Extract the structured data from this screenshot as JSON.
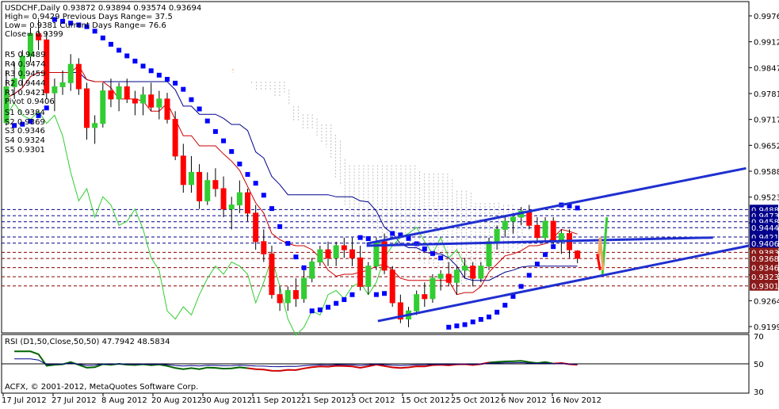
{
  "header": {
    "title": "USDCHF,Daily  0.93872 0.93894 0.93574 0.93694",
    "lines": [
      "High= 0.9429    Previous Days Range= 37.5",
      "Low= 0.9381    Current Days Range= 76.6",
      "Close= 0.9399"
    ]
  },
  "pivot_levels": [
    {
      "label": "R5 0.9489",
      "value": 0.9489
    },
    {
      "label": "R4 0.9474",
      "value": 0.9474
    },
    {
      "label": "R3 0.9459",
      "value": 0.9459
    },
    {
      "label": "R2 0.9444",
      "value": 0.9444
    },
    {
      "label": "R1 0.9421",
      "value": 0.9421
    },
    {
      "label": "Pivot 0.9406",
      "value": 0.9406
    },
    {
      "label": "S1 0.9384",
      "value": 0.9384
    },
    {
      "label": "S2 0.9369",
      "value": 0.9369
    },
    {
      "label": "S3 0.9346",
      "value": 0.9346
    },
    {
      "label": "S4 0.9324",
      "value": 0.9324
    },
    {
      "label": "S5 0.9301",
      "value": 0.9301
    }
  ],
  "copyright": "ACFX, © 2001-2012, MetaQuotes Software Corp.",
  "rsi": {
    "label": "RSI (D1,50,Close,50,50) 47.7942 48.5834",
    "y_ticks": [
      "70",
      "50",
      "30"
    ],
    "ylim": [
      30,
      70
    ]
  },
  "colors": {
    "bull": "#32cd32",
    "bear": "#ff0000",
    "trend": "#1f2fd0",
    "kijun": "#00008b",
    "tenkan": "#cc0000",
    "chikou": "#32cd32",
    "cloud_a": "#f4a460",
    "cloud_b": "#c0c0c0",
    "psar": "#0000ff",
    "arrow_green": "#32cd32",
    "arrow_orange": "#f4a460",
    "arrow_red": "#ff0000"
  },
  "chart_data": {
    "type": "candlestick",
    "symbol": "USDCHF",
    "timeframe": "Daily",
    "x_tick_labels": [
      "17 Jul 2012",
      "27 Jul 2012",
      "8 Aug 2012",
      "20 Aug 2012",
      "30 Aug 2012",
      "11 Sep 2012",
      "21 Sep 2012",
      "3 Oct 2012",
      "15 Oct 2012",
      "25 Oct 2012",
      "6 Nov 2012",
      "16 Nov 2012"
    ],
    "y_tick_labels": [
      "0.99765",
      "0.99120",
      "0.98475",
      "0.97815",
      "0.97170",
      "0.96525",
      "0.95880",
      "0.95235",
      "0.94590",
      "0.93940",
      "0.93295",
      "0.92640",
      "0.91995"
    ],
    "ylim": [
      0.9186,
      0.9999
    ],
    "right_axis_tags": [
      {
        "text": "0.94888",
        "value": 0.94888
      },
      {
        "text": "0.94735",
        "value": 0.94735
      },
      {
        "text": "0.94588",
        "value": 0.94588
      },
      {
        "text": "0.94443",
        "value": 0.94443
      },
      {
        "text": "0.94213",
        "value": 0.94213
      },
      {
        "text": "0.94062",
        "value": 0.94062
      },
      {
        "text": "0.93836",
        "value": 0.93836
      },
      {
        "text": "0.93687",
        "value": 0.93687
      },
      {
        "text": "0.93463",
        "value": 0.93463
      },
      {
        "text": "0.93238",
        "value": 0.93238
      },
      {
        "text": "0.93013",
        "value": 0.93013
      }
    ],
    "candles": [
      {
        "o": 0.9702,
        "h": 0.983,
        "l": 0.9695,
        "c": 0.979
      },
      {
        "o": 0.979,
        "h": 0.985,
        "l": 0.976,
        "c": 0.981
      },
      {
        "o": 0.981,
        "h": 0.988,
        "l": 0.979,
        "c": 0.9865
      },
      {
        "o": 0.9865,
        "h": 0.9935,
        "l": 0.985,
        "c": 0.992
      },
      {
        "o": 0.992,
        "h": 0.9955,
        "l": 0.988,
        "c": 0.9905
      },
      {
        "o": 0.9905,
        "h": 0.9925,
        "l": 0.976,
        "c": 0.9775
      },
      {
        "o": 0.9775,
        "h": 0.981,
        "l": 0.973,
        "c": 0.979
      },
      {
        "o": 0.979,
        "h": 0.983,
        "l": 0.977,
        "c": 0.98
      },
      {
        "o": 0.98,
        "h": 0.987,
        "l": 0.978,
        "c": 0.9845
      },
      {
        "o": 0.9845,
        "h": 0.986,
        "l": 0.977,
        "c": 0.9785
      },
      {
        "o": 0.9785,
        "h": 0.98,
        "l": 0.966,
        "c": 0.969
      },
      {
        "o": 0.969,
        "h": 0.972,
        "l": 0.965,
        "c": 0.97
      },
      {
        "o": 0.97,
        "h": 0.98,
        "l": 0.969,
        "c": 0.978
      },
      {
        "o": 0.978,
        "h": 0.981,
        "l": 0.974,
        "c": 0.976
      },
      {
        "o": 0.976,
        "h": 0.98,
        "l": 0.973,
        "c": 0.979
      },
      {
        "o": 0.979,
        "h": 0.981,
        "l": 0.975,
        "c": 0.976
      },
      {
        "o": 0.976,
        "h": 0.978,
        "l": 0.972,
        "c": 0.975
      },
      {
        "o": 0.975,
        "h": 0.979,
        "l": 0.972,
        "c": 0.977
      },
      {
        "o": 0.977,
        "h": 0.98,
        "l": 0.973,
        "c": 0.974
      },
      {
        "o": 0.974,
        "h": 0.978,
        "l": 0.971,
        "c": 0.976
      },
      {
        "o": 0.976,
        "h": 0.9775,
        "l": 0.97,
        "c": 0.971
      },
      {
        "o": 0.971,
        "h": 0.973,
        "l": 0.961,
        "c": 0.962
      },
      {
        "o": 0.962,
        "h": 0.965,
        "l": 0.953,
        "c": 0.955
      },
      {
        "o": 0.955,
        "h": 0.962,
        "l": 0.953,
        "c": 0.958
      },
      {
        "o": 0.958,
        "h": 0.96,
        "l": 0.949,
        "c": 0.951
      },
      {
        "o": 0.951,
        "h": 0.958,
        "l": 0.95,
        "c": 0.956
      },
      {
        "o": 0.956,
        "h": 0.959,
        "l": 0.952,
        "c": 0.954
      },
      {
        "o": 0.954,
        "h": 0.957,
        "l": 0.947,
        "c": 0.949
      },
      {
        "o": 0.949,
        "h": 0.952,
        "l": 0.944,
        "c": 0.95
      },
      {
        "o": 0.95,
        "h": 0.956,
        "l": 0.948,
        "c": 0.953
      },
      {
        "o": 0.953,
        "h": 0.954,
        "l": 0.946,
        "c": 0.948
      },
      {
        "o": 0.948,
        "h": 0.95,
        "l": 0.939,
        "c": 0.941
      },
      {
        "o": 0.941,
        "h": 0.944,
        "l": 0.936,
        "c": 0.938
      },
      {
        "o": 0.938,
        "h": 0.94,
        "l": 0.927,
        "c": 0.928
      },
      {
        "o": 0.928,
        "h": 0.93,
        "l": 0.924,
        "c": 0.926
      },
      {
        "o": 0.926,
        "h": 0.93,
        "l": 0.924,
        "c": 0.929
      },
      {
        "o": 0.929,
        "h": 0.932,
        "l": 0.925,
        "c": 0.927
      },
      {
        "o": 0.927,
        "h": 0.934,
        "l": 0.926,
        "c": 0.932
      },
      {
        "o": 0.932,
        "h": 0.937,
        "l": 0.931,
        "c": 0.936
      },
      {
        "o": 0.936,
        "h": 0.94,
        "l": 0.935,
        "c": 0.939
      },
      {
        "o": 0.939,
        "h": 0.941,
        "l": 0.935,
        "c": 0.937
      },
      {
        "o": 0.937,
        "h": 0.941,
        "l": 0.935,
        "c": 0.94
      },
      {
        "o": 0.94,
        "h": 0.942,
        "l": 0.937,
        "c": 0.939
      },
      {
        "o": 0.939,
        "h": 0.942,
        "l": 0.935,
        "c": 0.937
      },
      {
        "o": 0.937,
        "h": 0.94,
        "l": 0.929,
        "c": 0.93
      },
      {
        "o": 0.93,
        "h": 0.936,
        "l": 0.928,
        "c": 0.935
      },
      {
        "o": 0.935,
        "h": 0.942,
        "l": 0.934,
        "c": 0.941
      },
      {
        "o": 0.941,
        "h": 0.943,
        "l": 0.933,
        "c": 0.934
      },
      {
        "o": 0.934,
        "h": 0.935,
        "l": 0.925,
        "c": 0.926
      },
      {
        "o": 0.926,
        "h": 0.928,
        "l": 0.921,
        "c": 0.922
      },
      {
        "o": 0.922,
        "h": 0.925,
        "l": 0.92,
        "c": 0.924
      },
      {
        "o": 0.924,
        "h": 0.929,
        "l": 0.923,
        "c": 0.928
      },
      {
        "o": 0.928,
        "h": 0.931,
        "l": 0.925,
        "c": 0.927
      },
      {
        "o": 0.927,
        "h": 0.933,
        "l": 0.926,
        "c": 0.932
      },
      {
        "o": 0.932,
        "h": 0.934,
        "l": 0.929,
        "c": 0.933
      },
      {
        "o": 0.933,
        "h": 0.936,
        "l": 0.93,
        "c": 0.931
      },
      {
        "o": 0.931,
        "h": 0.935,
        "l": 0.928,
        "c": 0.934
      },
      {
        "o": 0.934,
        "h": 0.937,
        "l": 0.932,
        "c": 0.935
      },
      {
        "o": 0.935,
        "h": 0.936,
        "l": 0.93,
        "c": 0.932
      },
      {
        "o": 0.932,
        "h": 0.936,
        "l": 0.931,
        "c": 0.935
      },
      {
        "o": 0.935,
        "h": 0.942,
        "l": 0.934,
        "c": 0.941
      },
      {
        "o": 0.941,
        "h": 0.945,
        "l": 0.939,
        "c": 0.944
      },
      {
        "o": 0.944,
        "h": 0.947,
        "l": 0.942,
        "c": 0.946
      },
      {
        "o": 0.946,
        "h": 0.948,
        "l": 0.943,
        "c": 0.947
      },
      {
        "o": 0.947,
        "h": 0.9495,
        "l": 0.945,
        "c": 0.9485
      },
      {
        "o": 0.9485,
        "h": 0.95,
        "l": 0.944,
        "c": 0.945
      },
      {
        "o": 0.945,
        "h": 0.947,
        "l": 0.941,
        "c": 0.942
      },
      {
        "o": 0.942,
        "h": 0.947,
        "l": 0.941,
        "c": 0.946
      },
      {
        "o": 0.946,
        "h": 0.947,
        "l": 0.94,
        "c": 0.941
      },
      {
        "o": 0.941,
        "h": 0.944,
        "l": 0.938,
        "c": 0.943
      },
      {
        "o": 0.943,
        "h": 0.944,
        "l": 0.937,
        "c": 0.939
      },
      {
        "o": 0.9387,
        "h": 0.9389,
        "l": 0.9357,
        "c": 0.9369
      }
    ],
    "trendlines": [
      {
        "name": "upper channel",
        "from": [
          0.9385,
          0.9405
        ],
        "to": [
          0.9962,
          0.959
        ]
      },
      {
        "name": "lower channel",
        "from": [
          0.9535,
          0.9215
        ],
        "to": [
          0.9999,
          0.94
        ]
      },
      {
        "name": "mid line",
        "from": [
          0.9385,
          0.94
        ],
        "to": [
          0.952,
          0.942
        ]
      }
    ],
    "projections": [
      {
        "color": "green",
        "points": [
          [
            0.969,
            0.933
          ],
          [
            0.975,
            0.947
          ]
        ]
      },
      {
        "color": "orange",
        "points": [
          [
            0.964,
            0.937
          ],
          [
            0.966,
            0.942
          ],
          [
            0.97,
            0.934
          ]
        ]
      },
      {
        "color": "red",
        "points": [
          [
            0.962,
            0.938
          ],
          [
            0.966,
            0.934
          ]
        ]
      }
    ]
  }
}
